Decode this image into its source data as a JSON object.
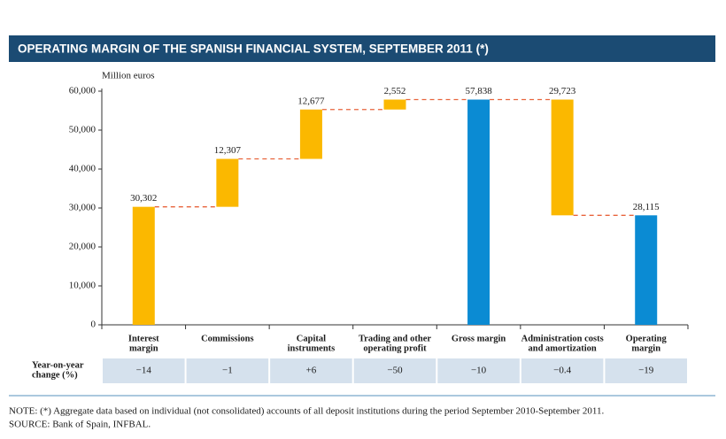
{
  "chart_data": {
    "type": "waterfall",
    "title": "OPERATING MARGIN OF THE SPANISH FINANCIAL SYSTEM, SEPTEMBER 2011 (*)",
    "y_label": "Million euros",
    "categories": [
      [
        "Interest",
        "margin"
      ],
      [
        "Commissions"
      ],
      [
        "Capital",
        "instruments"
      ],
      [
        "Trading and other",
        "operating profit"
      ],
      [
        "Gross margin"
      ],
      [
        "Administration costs",
        "and amortization"
      ],
      [
        "Operating",
        "margin"
      ]
    ],
    "values": [
      30302,
      12307,
      12677,
      2552,
      57838,
      29723,
      28115
    ],
    "value_labels": [
      "30,302",
      "12,307",
      "12,677",
      "2,552",
      "57,838",
      "29,723",
      "28,115"
    ],
    "measures": [
      "increase",
      "increase",
      "increase",
      "increase",
      "total",
      "decrease",
      "total"
    ],
    "colors": {
      "increase": "#fbb800",
      "decrease": "#fbb800",
      "total": "#0b8bd3",
      "connector": "#e8643c"
    },
    "ylim": [
      0,
      60000
    ],
    "yticks": [
      0,
      {
        "value": 10000,
        "label": "10,000"
      },
      {
        "value": 20000,
        "label": "20,000"
      },
      {
        "value": 30000,
        "label": "30,000"
      },
      {
        "value": 40000,
        "label": "40,000"
      },
      {
        "value": 50000,
        "label": "50,000"
      },
      {
        "value": 60000,
        "label": "60,000"
      }
    ],
    "yoy": {
      "title": [
        "Year-on-year",
        "change (%)"
      ],
      "values": [
        -14,
        -1,
        6,
        -50,
        -10,
        -0.4,
        -19
      ],
      "value_labels": [
        "−14",
        "−1",
        "+6",
        "−50",
        "−10",
        "−0.4",
        "−19"
      ]
    },
    "notes": [
      "NOTE: (*) Aggregate data based on individual (not consolidated) accounts of all deposit institutions during the period September 2010-September 2011.",
      "SOURCE: Bank of Spain, INFBAL."
    ]
  }
}
